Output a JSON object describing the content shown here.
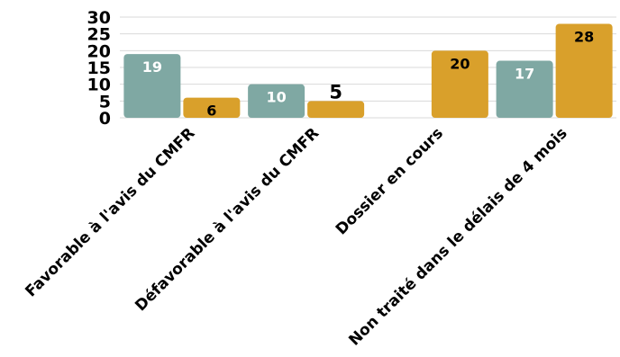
{
  "chart_data": {
    "type": "bar",
    "categories": [
      "Favorable à l'avis du CMFR",
      "Défavorable à l'avis du CMFR",
      "Dossier en cours",
      "Non traité dans le délais de 4 mois"
    ],
    "series": [
      {
        "values": [
          19,
          10,
          null,
          17
        ],
        "color": "#7fa8a3",
        "label_color": "#ffffff"
      },
      {
        "values": [
          6,
          5,
          20,
          28
        ],
        "color": "#d9a02b",
        "label_color": "#000000"
      }
    ],
    "y_ticks": [
      "0",
      "5",
      "10",
      "15",
      "20",
      "25",
      "30"
    ],
    "ylim": [
      0,
      30
    ],
    "grid": true,
    "legend": "none"
  }
}
